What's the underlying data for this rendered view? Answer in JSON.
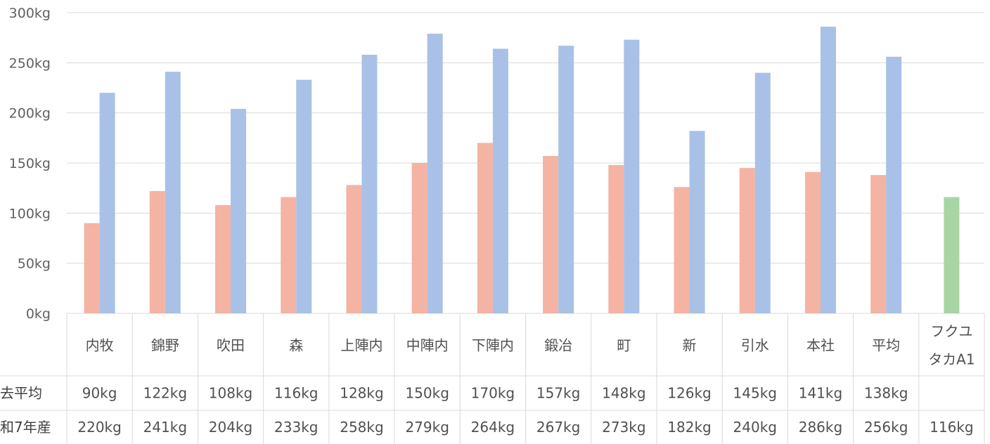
{
  "colors": {
    "series_1": "#f4b3a3",
    "series_2": "#a9c1e6",
    "series_3": "#a8d5a4",
    "gridline": "#d9d9d9",
    "table_border": "#d9d9d9"
  },
  "chart_data": {
    "type": "bar",
    "title": "",
    "xlabel": "",
    "ylabel": "",
    "ylim": [
      0,
      300
    ],
    "y_ticks": [
      {
        "value": 0,
        "label": "0kg"
      },
      {
        "value": 50,
        "label": "50kg"
      },
      {
        "value": 100,
        "label": "100kg"
      },
      {
        "value": 150,
        "label": "150kg"
      },
      {
        "value": 200,
        "label": "200kg"
      },
      {
        "value": 250,
        "label": "250kg"
      },
      {
        "value": 300,
        "label": "300kg"
      }
    ],
    "grid": true,
    "categories": [
      {
        "lines": [
          "内牧"
        ]
      },
      {
        "lines": [
          "錦野"
        ]
      },
      {
        "lines": [
          "吹田"
        ]
      },
      {
        "lines": [
          "森"
        ]
      },
      {
        "lines": [
          "上陣内"
        ]
      },
      {
        "lines": [
          "中陣内"
        ]
      },
      {
        "lines": [
          "下陣内"
        ]
      },
      {
        "lines": [
          "鍛冶"
        ]
      },
      {
        "lines": [
          "町"
        ]
      },
      {
        "lines": [
          "新"
        ]
      },
      {
        "lines": [
          "引水"
        ]
      },
      {
        "lines": [
          "本社"
        ]
      },
      {
        "lines": [
          "平均"
        ]
      },
      {
        "lines": [
          "フクユ",
          "タカA1"
        ]
      }
    ],
    "series": [
      {
        "name": "去平均",
        "values": [
          90,
          122,
          108,
          116,
          128,
          150,
          170,
          157,
          148,
          126,
          145,
          141,
          138,
          null
        ],
        "labels": [
          "90kg",
          "122kg",
          "108kg",
          "116kg",
          "128kg",
          "150kg",
          "170kg",
          "157kg",
          "148kg",
          "126kg",
          "145kg",
          "141kg",
          "138kg",
          ""
        ]
      },
      {
        "name": "和7年産",
        "values": [
          220,
          241,
          204,
          233,
          258,
          279,
          264,
          267,
          273,
          182,
          240,
          286,
          256,
          null
        ],
        "labels": [
          "220kg",
          "241kg",
          "204kg",
          "233kg",
          "258kg",
          "279kg",
          "264kg",
          "267kg",
          "273kg",
          "182kg",
          "240kg",
          "286kg",
          "256kg",
          "116kg"
        ]
      },
      {
        "name": "",
        "values": [
          null,
          null,
          null,
          null,
          null,
          null,
          null,
          null,
          null,
          null,
          null,
          null,
          null,
          116
        ]
      }
    ]
  }
}
